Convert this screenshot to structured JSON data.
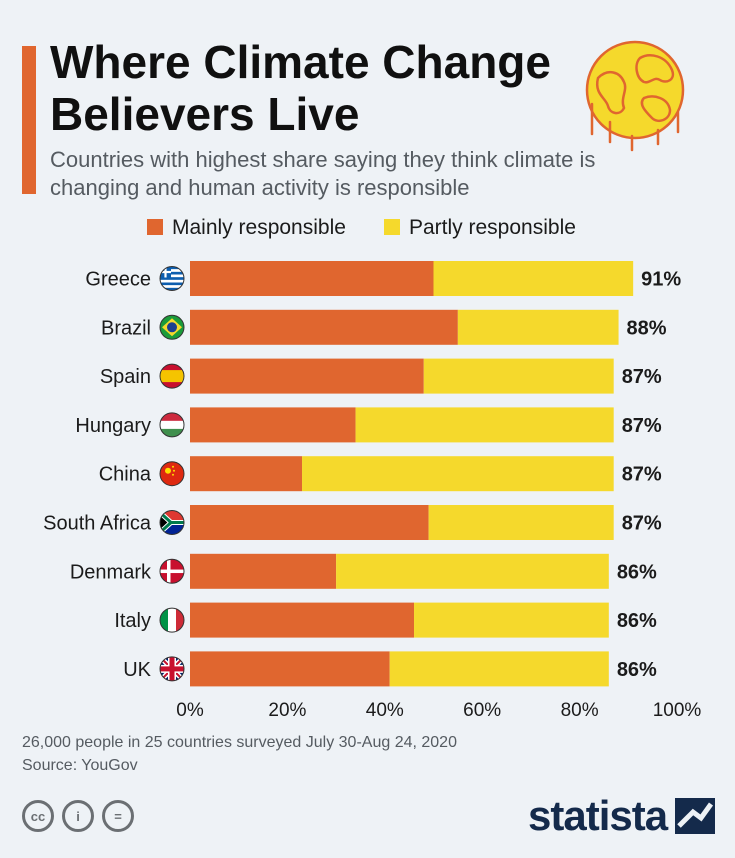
{
  "header": {
    "title": "Where Climate Change Believers Live",
    "subtitle": "Countries with highest share saying they think climate is changing and human activity is responsible"
  },
  "footer": {
    "note": "26,000 people in 25 countries surveyed July 30-Aug 24, 2020",
    "source": "Source: YouGov",
    "brand": "statista",
    "license_icons": [
      "cc",
      "i",
      "="
    ]
  },
  "colors": {
    "accent": "#e0662f",
    "mainly": "#e0662f",
    "partly": "#f5d92c"
  },
  "chart_data": {
    "type": "bar",
    "orientation": "horizontal",
    "stacked": true,
    "categories": [
      "Greece",
      "Brazil",
      "Spain",
      "Hungary",
      "China",
      "South Africa",
      "Denmark",
      "Italy",
      "UK"
    ],
    "series": [
      {
        "name": "Mainly responsible",
        "values": [
          50,
          55,
          48,
          34,
          23,
          49,
          30,
          46,
          41
        ]
      },
      {
        "name": "Partly responsible",
        "values": [
          41,
          33,
          39,
          53,
          64,
          38,
          56,
          40,
          45
        ]
      }
    ],
    "totals": [
      "91%",
      "88%",
      "87%",
      "87%",
      "87%",
      "87%",
      "86%",
      "86%",
      "86%"
    ],
    "flags": [
      "greece-flag-icon",
      "brazil-flag-icon",
      "spain-flag-icon",
      "hungary-flag-icon",
      "china-flag-icon",
      "south-africa-flag-icon",
      "denmark-flag-icon",
      "italy-flag-icon",
      "uk-flag-icon"
    ],
    "xlim": [
      0,
      100
    ],
    "xticks": [
      0,
      20,
      40,
      60,
      80,
      100
    ],
    "xtick_labels": [
      "0%",
      "20%",
      "40%",
      "60%",
      "80%",
      "100%"
    ],
    "legend_position": "top",
    "grid": false
  }
}
